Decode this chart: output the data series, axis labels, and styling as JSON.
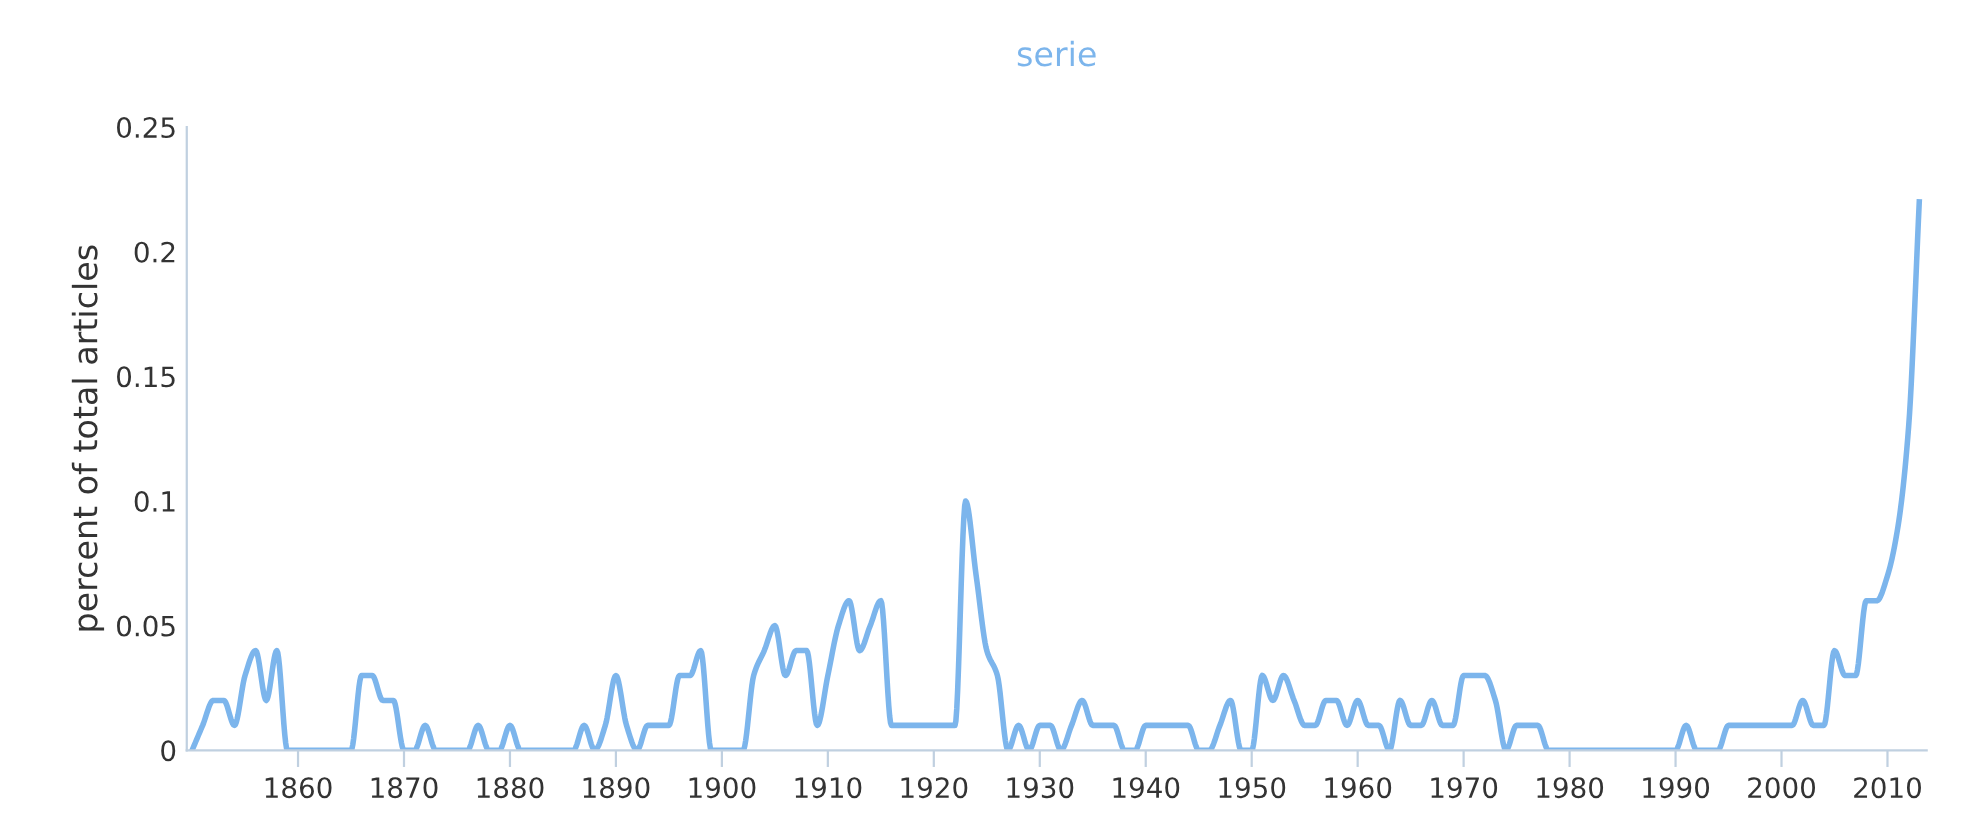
{
  "chart_data": {
    "type": "line",
    "title": "serie",
    "ylabel": "percent of total articles",
    "x": [
      1850,
      1851,
      1852,
      1853,
      1854,
      1855,
      1856,
      1857,
      1858,
      1859,
      1860,
      1861,
      1862,
      1863,
      1864,
      1865,
      1866,
      1867,
      1868,
      1869,
      1870,
      1871,
      1872,
      1873,
      1874,
      1875,
      1876,
      1877,
      1878,
      1879,
      1880,
      1881,
      1882,
      1883,
      1884,
      1885,
      1886,
      1887,
      1888,
      1889,
      1890,
      1891,
      1892,
      1893,
      1894,
      1895,
      1896,
      1897,
      1898,
      1899,
      1900,
      1901,
      1902,
      1903,
      1904,
      1905,
      1906,
      1907,
      1908,
      1909,
      1910,
      1911,
      1912,
      1913,
      1914,
      1915,
      1916,
      1917,
      1918,
      1919,
      1920,
      1921,
      1922,
      1923,
      1924,
      1925,
      1926,
      1927,
      1928,
      1929,
      1930,
      1931,
      1932,
      1933,
      1934,
      1935,
      1936,
      1937,
      1938,
      1939,
      1940,
      1941,
      1942,
      1943,
      1944,
      1945,
      1946,
      1947,
      1948,
      1949,
      1950,
      1951,
      1952,
      1953,
      1954,
      1955,
      1956,
      1957,
      1958,
      1959,
      1960,
      1961,
      1962,
      1963,
      1964,
      1965,
      1966,
      1967,
      1968,
      1969,
      1970,
      1971,
      1972,
      1973,
      1974,
      1975,
      1976,
      1977,
      1978,
      1979,
      1980,
      1981,
      1982,
      1983,
      1984,
      1985,
      1986,
      1987,
      1988,
      1989,
      1990,
      1991,
      1992,
      1993,
      1994,
      1995,
      1996,
      1997,
      1998,
      1999,
      2000,
      2001,
      2002,
      2003,
      2004,
      2005,
      2006,
      2007,
      2008,
      2009,
      2010,
      2011,
      2012,
      2013
    ],
    "series": [
      {
        "color": "#7cb5ec",
        "values": [
          0,
          0.01,
          0.02,
          0.02,
          0.01,
          0.03,
          0.04,
          0.02,
          0.04,
          0,
          0,
          0,
          0,
          0,
          0,
          0,
          0.03,
          0.03,
          0.02,
          0.02,
          0,
          0,
          0.01,
          0,
          0,
          0,
          0,
          0.01,
          0,
          0,
          0.01,
          0,
          0,
          0,
          0,
          0,
          0,
          0.01,
          0,
          0.01,
          0.03,
          0.01,
          0,
          0.01,
          0.01,
          0.01,
          0.03,
          0.03,
          0.04,
          0,
          0,
          0,
          0,
          0.03,
          0.04,
          0.05,
          0.03,
          0.04,
          0.04,
          0.01,
          0.03,
          0.05,
          0.06,
          0.04,
          0.05,
          0.06,
          0.01,
          0.01,
          0.01,
          0.01,
          0.01,
          0.01,
          0.01,
          0.1,
          0.07,
          0.04,
          0.03,
          0,
          0.01,
          0,
          0.01,
          0.01,
          0,
          0.01,
          0.02,
          0.01,
          0.01,
          0.01,
          0,
          0,
          0.01,
          0.01,
          0.01,
          0.01,
          0.01,
          0,
          0,
          0.01,
          0.02,
          0,
          0,
          0.03,
          0.02,
          0.03,
          0.02,
          0.01,
          0.01,
          0.02,
          0.02,
          0.01,
          0.02,
          0.01,
          0.01,
          0,
          0.02,
          0.01,
          0.01,
          0.02,
          0.01,
          0.01,
          0.03,
          0.03,
          0.03,
          0.02,
          0,
          0.01,
          0.01,
          0.01,
          0,
          0,
          0,
          0,
          0,
          0,
          0,
          0,
          0,
          0,
          0,
          0,
          0,
          0.01,
          0,
          0,
          0,
          0.01,
          0.01,
          0.01,
          0.01,
          0.01,
          0.01,
          0.01,
          0.02,
          0.01,
          0.01,
          0.04,
          0.03,
          0.03,
          0.06,
          0.06,
          0.07,
          0.09,
          0.13,
          0.22
        ]
      }
    ],
    "xlim": [
      1849.5,
      2013.7
    ],
    "xticks": [
      1860,
      1870,
      1880,
      1890,
      1900,
      1910,
      1920,
      1930,
      1940,
      1950,
      1960,
      1970,
      1980,
      1990,
      2000,
      2010
    ],
    "ylim": [
      0,
      0.25
    ],
    "yticks": [
      0,
      0.05,
      0.1,
      0.15,
      0.2,
      0.25
    ],
    "grid": false,
    "marker": "none",
    "line_style": "solid"
  }
}
